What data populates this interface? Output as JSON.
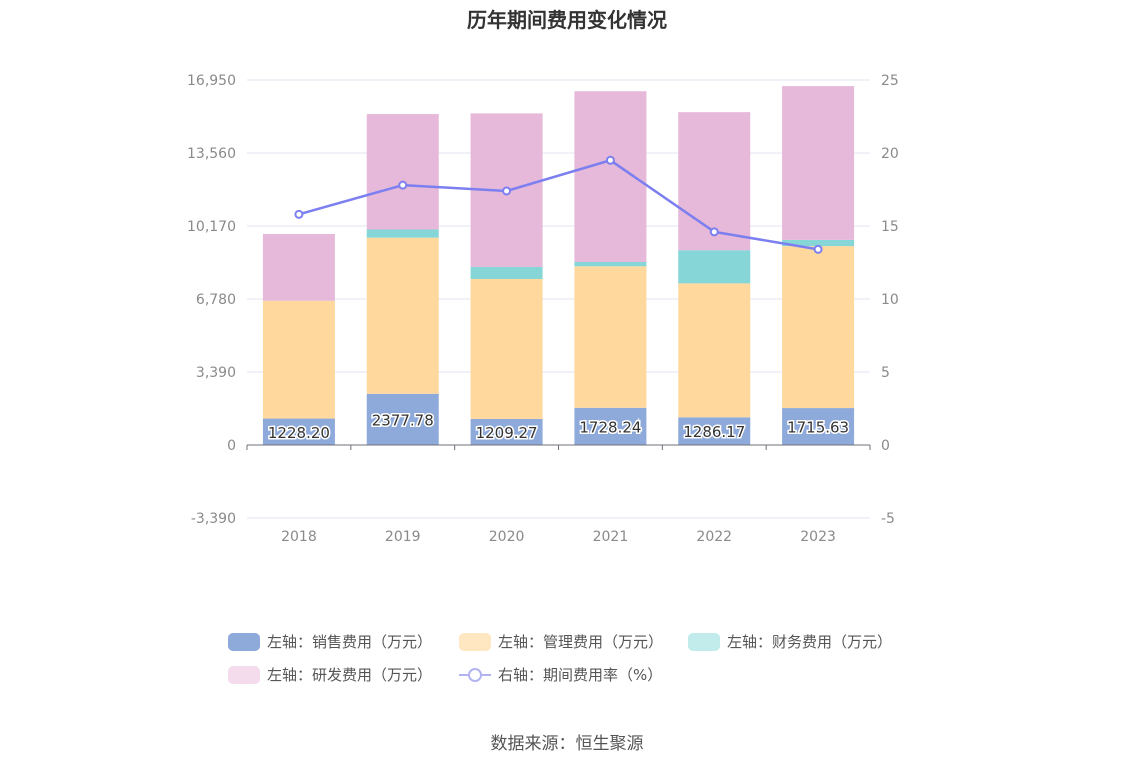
{
  "chart_data": {
    "type": "bar",
    "title": "历年期间费用变化情况",
    "categories": [
      "2018",
      "2019",
      "2020",
      "2021",
      "2022",
      "2023"
    ],
    "stacked": true,
    "left_axis": {
      "ticks": [
        "-3,390",
        "0",
        "3,390",
        "6,780",
        "10,170",
        "13,560",
        "16,950"
      ],
      "ylim": [
        -3390,
        16950
      ]
    },
    "right_axis": {
      "ticks": [
        "-5",
        "0",
        "5",
        "10",
        "15",
        "20",
        "25"
      ],
      "ylim": [
        -5,
        25
      ]
    },
    "series": [
      {
        "name": "左轴：销售费用（万元）",
        "type": "bar",
        "axis": "left",
        "color": "#8eaadb",
        "values": [
          1228.2,
          2377.78,
          1209.27,
          1728.24,
          1286.17,
          1715.63
        ],
        "labels": [
          "1228.20",
          "2377.78",
          "1209.27",
          "1728.24",
          "1286.17",
          "1715.63"
        ]
      },
      {
        "name": "左轴：管理费用（万元）",
        "type": "bar",
        "axis": "left",
        "color": "#ffd89e",
        "values": [
          5470,
          7250,
          6500,
          6570,
          6220,
          7520
        ]
      },
      {
        "name": "左轴：财务费用（万元）",
        "type": "bar",
        "axis": "left",
        "color": "#86d6d8",
        "values": [
          0,
          380,
          560,
          200,
          1540,
          290
        ]
      },
      {
        "name": "左轴：研发费用（万元）",
        "type": "bar",
        "axis": "left",
        "color": "#e6b8d9",
        "values": [
          3100,
          5360,
          7130,
          7930,
          6410,
          7140
        ]
      },
      {
        "name": "右轴：期间费用率（%）",
        "type": "line",
        "axis": "right",
        "color": "#7b7fef",
        "values": [
          15.8,
          17.8,
          17.4,
          19.5,
          14.6,
          13.4
        ]
      }
    ],
    "grid": true,
    "legend_position": "bottom"
  },
  "legend": [
    {
      "label": "左轴：销售费用（万元）",
      "color": "#8eaadb",
      "kind": "bar"
    },
    {
      "label": "左轴：管理费用（万元）",
      "color": "#ffe7c2",
      "kind": "bar"
    },
    {
      "label": "左轴：财务费用（万元）",
      "color": "#c2ebec",
      "kind": "bar"
    },
    {
      "label": "左轴：研发费用（万元）",
      "color": "#f4dced",
      "kind": "bar"
    },
    {
      "label": "右轴：期间费用率（%）",
      "color": "#b2b4f2",
      "kind": "line"
    }
  ],
  "source": "数据来源：恒生聚源"
}
